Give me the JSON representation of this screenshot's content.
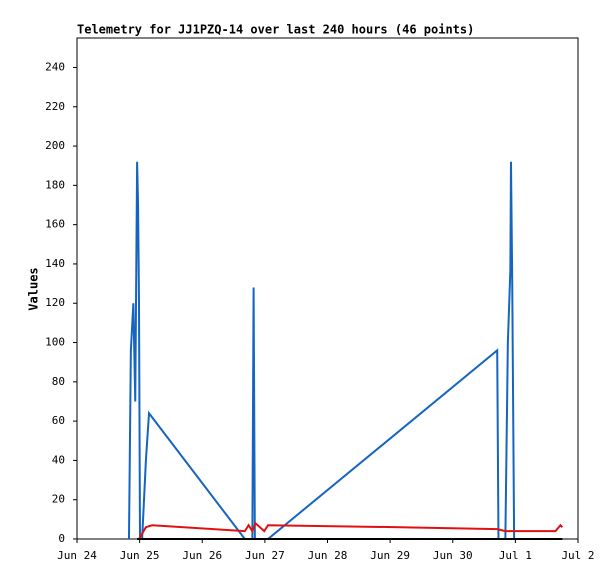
{
  "chart_data": {
    "type": "line",
    "title": "Telemetry for JJ1PZQ-14 over last 240 hours (46 points)",
    "y_label": "Values",
    "xlim": [
      0,
      8
    ],
    "ylim": [
      0,
      255
    ],
    "xticks": [
      {
        "value": 0,
        "label": "Jun 24"
      },
      {
        "value": 1,
        "label": "Jun 25"
      },
      {
        "value": 2,
        "label": "Jun 26"
      },
      {
        "value": 3,
        "label": "Jun 27"
      },
      {
        "value": 4,
        "label": "Jun 28"
      },
      {
        "value": 5,
        "label": "Jun 29"
      },
      {
        "value": 6,
        "label": "Jun 30"
      },
      {
        "value": 7,
        "label": "Jul 1"
      },
      {
        "value": 8,
        "label": "Jul 2"
      }
    ],
    "yticks": [
      0,
      20,
      40,
      60,
      80,
      100,
      120,
      140,
      160,
      180,
      200,
      220,
      240
    ],
    "series": [
      {
        "color": "#1565c0",
        "x": [
          0.83,
          0.86,
          0.9,
          0.93,
          0.96,
          0.975,
          0.99,
          1.006,
          1.04,
          1.1,
          1.15,
          2.68,
          2.8,
          2.82,
          2.84,
          3.05,
          6.71,
          6.73,
          6.84,
          6.88,
          6.92,
          6.93,
          6.95,
          6.98
        ],
        "values": [
          0,
          96,
          120,
          70,
          192,
          170,
          120,
          0,
          0,
          40,
          64,
          0,
          0,
          128,
          0,
          0,
          96,
          0,
          0,
          100,
          137,
          192,
          130,
          0
        ]
      },
      {
        "color": "#e01010",
        "x": [
          0.99,
          1.1,
          1.2,
          2.68,
          2.74,
          2.8,
          2.85,
          2.99,
          3.05,
          5.16,
          6.71,
          6.84,
          7.64,
          7.72,
          7.75
        ],
        "values": [
          0,
          6,
          7,
          4,
          7,
          4,
          8,
          4,
          7,
          6,
          5,
          4,
          4,
          7,
          6
        ]
      },
      {
        "color": "#000000",
        "x": [
          0.96,
          7.75
        ],
        "values": [
          0,
          0
        ]
      }
    ]
  }
}
